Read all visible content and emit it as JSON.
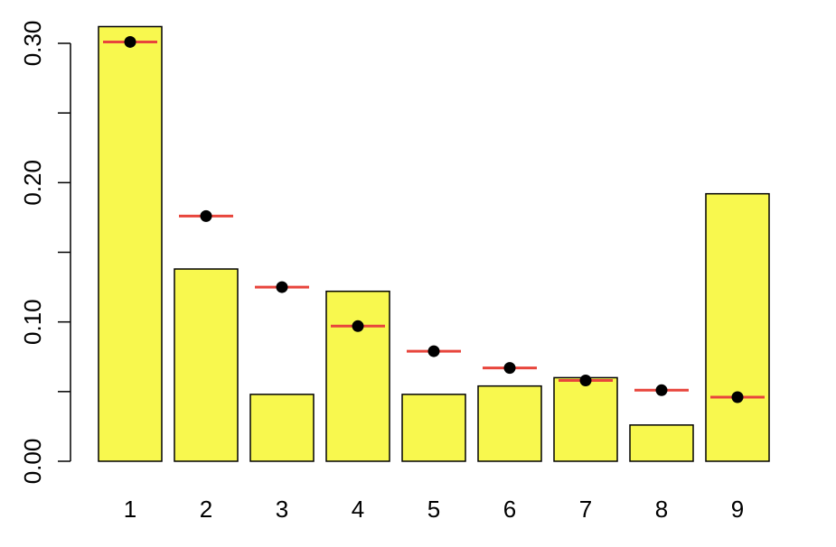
{
  "chart_data": {
    "type": "bar",
    "categories": [
      "1",
      "2",
      "3",
      "4",
      "5",
      "6",
      "7",
      "8",
      "9"
    ],
    "series": [
      {
        "type": "bar",
        "color": "#f8f84e",
        "values": [
          0.312,
          0.138,
          0.048,
          0.122,
          0.048,
          0.054,
          0.06,
          0.026,
          0.192
        ]
      },
      {
        "type": "point",
        "color": "#000000",
        "line_color": "#e8453c",
        "values": [
          0.301,
          0.176,
          0.125,
          0.097,
          0.079,
          0.067,
          0.058,
          0.051,
          0.046
        ]
      }
    ],
    "ylim": [
      0,
      0.3
    ],
    "yticks": [
      {
        "value": 0,
        "label": "0.00"
      },
      0.05,
      {
        "value": 0.1,
        "label": "0.10"
      },
      0.15,
      {
        "value": 0.2,
        "label": "0.20"
      },
      0.25,
      {
        "value": 0.3,
        "label": "0.30"
      }
    ],
    "ytick_labels_shown": [
      0,
      2,
      4,
      6
    ]
  }
}
